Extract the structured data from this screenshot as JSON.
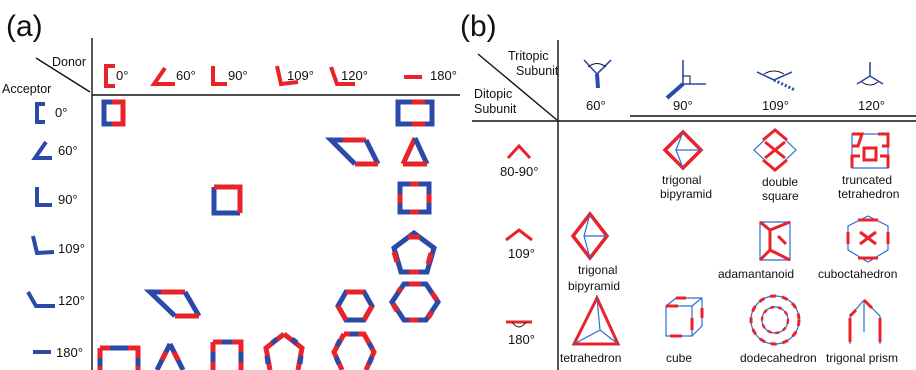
{
  "panels": {
    "a": {
      "label": "(a)",
      "corner_top": "Donor",
      "corner_bottom": "Acceptor",
      "donor_angles": [
        "0°",
        "60°",
        "90°",
        "109°",
        "120°",
        "180°"
      ],
      "acceptor_angles": [
        "0°",
        "60°",
        "90°",
        "109°",
        "120°",
        "180°"
      ]
    },
    "b": {
      "label": "(b)",
      "corner_top_line1": "Tritopic",
      "corner_top_line2": "Subunit",
      "corner_bottom_line1": "Ditopic",
      "corner_bottom_line2": "Subunit",
      "tritopic_angles": [
        "60°",
        "90°",
        "109°",
        "120°"
      ],
      "ditopic_angles": [
        "80-90°",
        "109°",
        "180°"
      ],
      "shapes": {
        "trigonal_bipyramid_1": [
          "trigonal",
          "bipyramid"
        ],
        "double_square": [
          "double",
          "square"
        ],
        "truncated_tetrahedron": [
          "truncated",
          "tetrahedron"
        ],
        "trigonal_bipyramid_2": [
          "trigonal",
          "bipyramid"
        ],
        "adamantanoid": "adamantanoid",
        "cuboctahedron": "cuboctahedron",
        "tetrahedron": "tetrahedron",
        "cube": "cube",
        "dodecahedron": "dodecahedron",
        "trigonal_prism": "trigonal prism"
      }
    }
  },
  "colors": {
    "donor": "#e8232a",
    "acceptor": "#2b4aa8"
  }
}
